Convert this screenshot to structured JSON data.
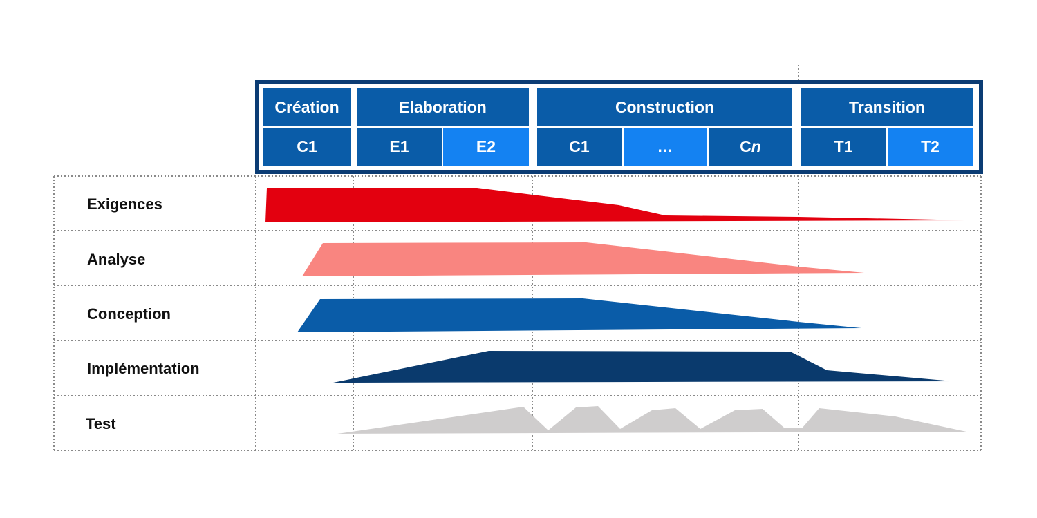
{
  "phases": [
    {
      "label": "Création"
    },
    {
      "label": "Elaboration"
    },
    {
      "label": "Construction"
    },
    {
      "label": "Transition"
    }
  ],
  "iterations": [
    {
      "label": "C1",
      "tone": "dark"
    },
    {
      "label": "E1",
      "tone": "dark"
    },
    {
      "label": "E2",
      "tone": "light"
    },
    {
      "label": "C1",
      "tone": "dark"
    },
    {
      "label": "…",
      "tone": "light"
    },
    {
      "label": "C",
      "italic_suffix": "n",
      "tone": "dark"
    },
    {
      "label": "T1",
      "tone": "dark"
    },
    {
      "label": "T2",
      "tone": "light"
    }
  ],
  "disciplines": [
    {
      "label": "Exigences",
      "color": "#e3000f"
    },
    {
      "label": "Analyse",
      "color": "#f98580"
    },
    {
      "label": "Conception",
      "color": "#0a5ca8"
    },
    {
      "label": "Implémentation",
      "color": "#0a3a6d"
    },
    {
      "label": "Test",
      "color": "#cfcdcd"
    }
  ],
  "colors": {
    "frame": "#0b3c74",
    "header_dark": "#0a5ca8",
    "header_light": "#1482f2",
    "grid": "#8a8a8a"
  }
}
